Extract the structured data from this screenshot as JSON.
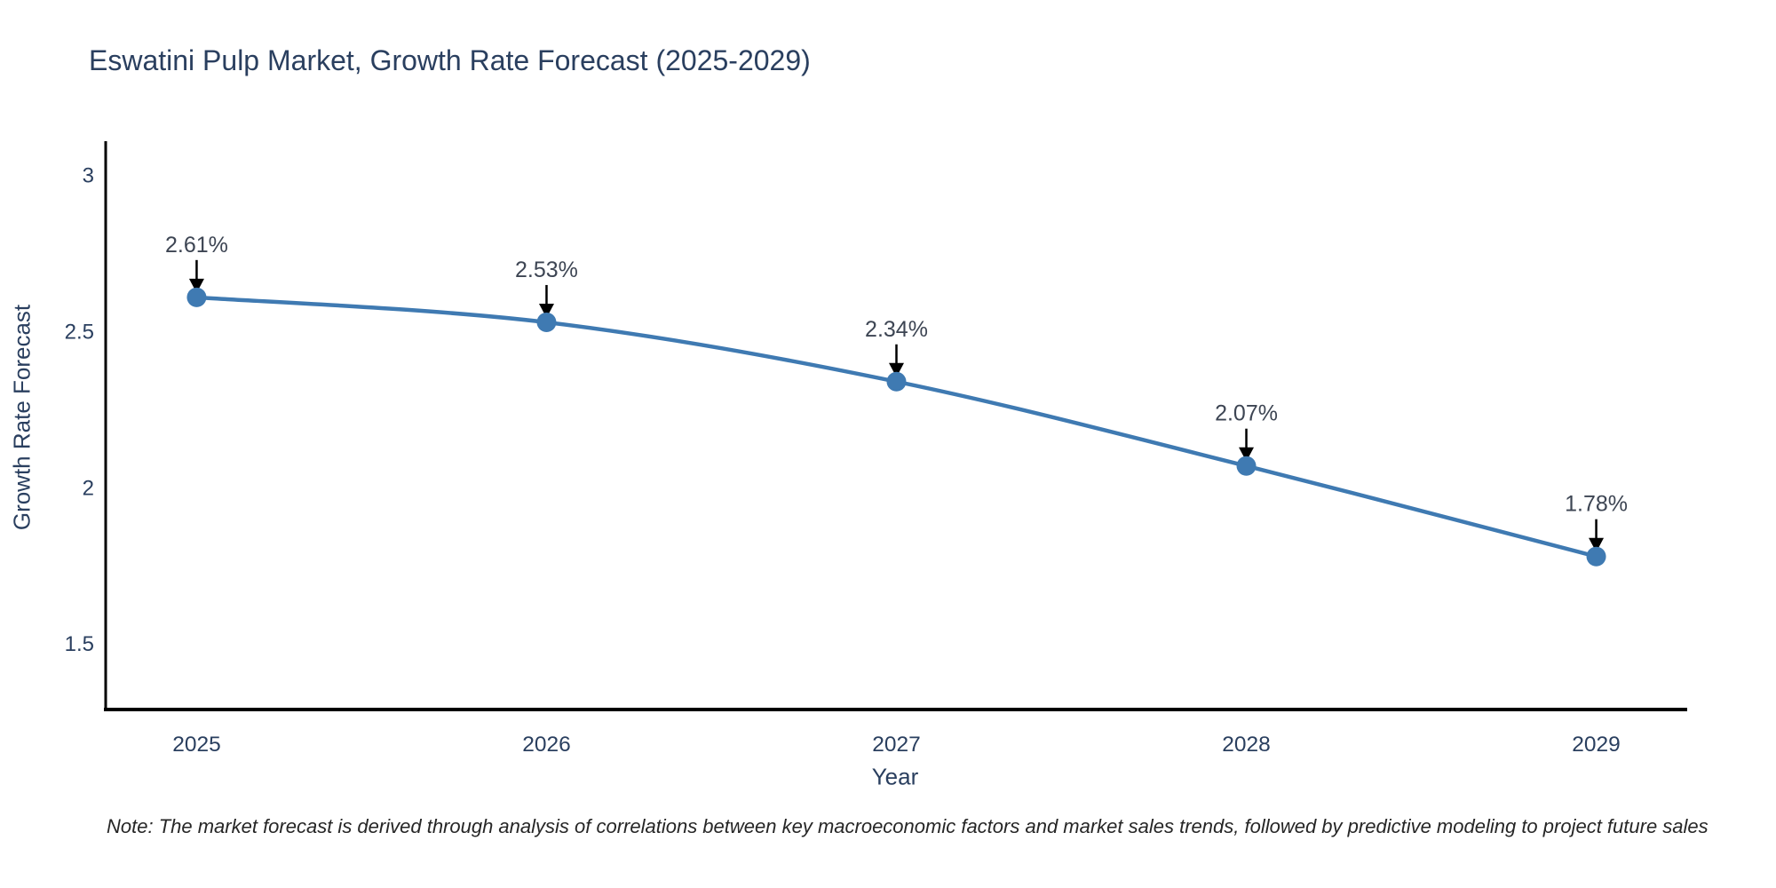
{
  "title": "Eswatini Pulp Market, Growth Rate Forecast (2025-2029)",
  "note": "Note: The market forecast is derived through analysis of correlations between key macroeconomic factors and market sales trends, followed by predictive modeling to project future sales",
  "chart_data": {
    "type": "line",
    "title": "Eswatini Pulp Market, Growth Rate Forecast (2025-2029)",
    "xlabel": "Year",
    "ylabel": "Growth Rate Forecast",
    "x": [
      2025,
      2026,
      2027,
      2028,
      2029
    ],
    "values": [
      2.61,
      2.53,
      2.34,
      2.07,
      1.78
    ],
    "point_labels": [
      "2.61%",
      "2.53%",
      "2.34%",
      "2.07%",
      "1.78%"
    ],
    "xticks": [
      "2025",
      "2026",
      "2027",
      "2028",
      "2029"
    ],
    "yticks": [
      "3",
      "2.5",
      "2",
      "1.5"
    ],
    "ytick_values": [
      3,
      2.5,
      2,
      1.5
    ],
    "xtick_values": [
      2025,
      2026,
      2027,
      2028,
      2029
    ],
    "xlim": [
      2024.74,
      2029.26
    ],
    "ylim": [
      1.29,
      3.11
    ],
    "grid": false,
    "legend": null,
    "colors": {
      "line": "#3f7ab2",
      "marker": "#3f7ab2",
      "axis": "#000000",
      "tick_text": "#2a3f5f",
      "annotation_text": "#3d4553",
      "annotation_arrow": "#000000",
      "title_text": "#2a3f5f",
      "note_text": "#262626"
    }
  }
}
